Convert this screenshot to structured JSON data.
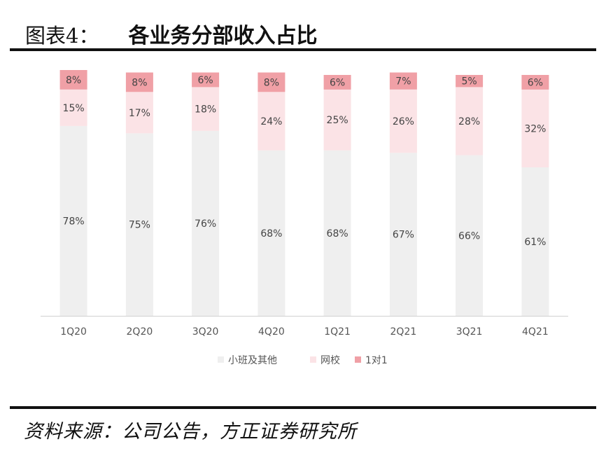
{
  "header": {
    "prefix": "图表4：",
    "title": "各业务分部收入占比"
  },
  "footer": {
    "source": "资料来源：公司公告，方正证券研究所"
  },
  "colors": {
    "small_class": "#efefef",
    "online_school": "#fbe3e6",
    "one_on_one": "#f0a0a6",
    "label_text": "#444444",
    "axis": "#d0d0d0"
  },
  "chart_data": {
    "type": "bar",
    "stacked": true,
    "percent": true,
    "categories": [
      "1Q20",
      "2Q20",
      "3Q20",
      "4Q20",
      "1Q21",
      "2Q21",
      "3Q21",
      "4Q21"
    ],
    "series": [
      {
        "name": "小班及其他",
        "values": [
          78,
          75,
          76,
          68,
          68,
          67,
          66,
          61
        ],
        "labels": [
          "78%",
          "75%",
          "76%",
          "68%",
          "68%",
          "67%",
          "66%",
          "61%"
        ]
      },
      {
        "name": "网校",
        "values": [
          15,
          17,
          18,
          24,
          25,
          26,
          28,
          32
        ],
        "labels": [
          "15%",
          "17%",
          "18%",
          "24%",
          "25%",
          "26%",
          "28%",
          "32%"
        ]
      },
      {
        "name": "1对1",
        "values": [
          8,
          8,
          6,
          8,
          6,
          7,
          5,
          6
        ],
        "labels": [
          "8%",
          "8%",
          "6%",
          "8%",
          "6%",
          "7%",
          "5%",
          "6%"
        ]
      }
    ],
    "ylim": [
      0,
      101
    ],
    "grid": false,
    "legend": "bottom"
  }
}
